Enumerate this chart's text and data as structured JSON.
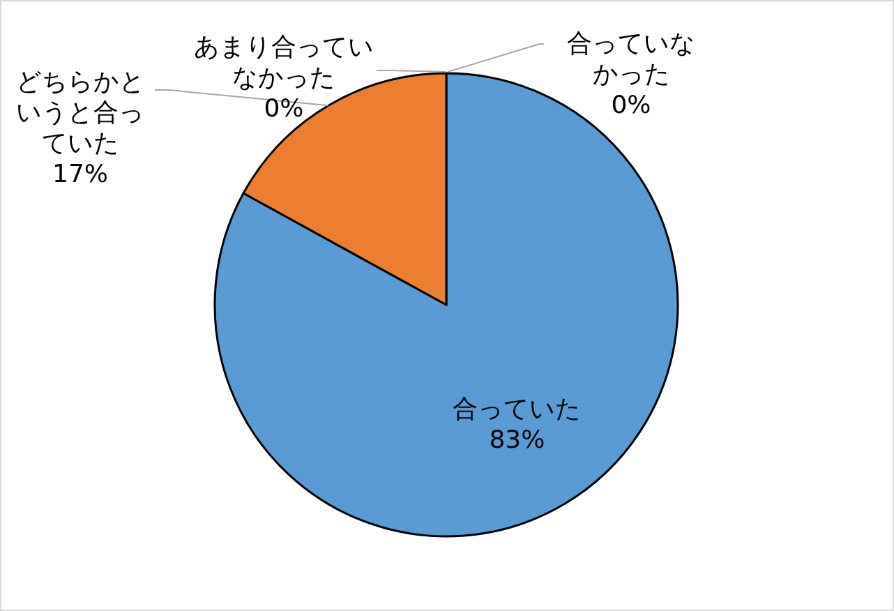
{
  "chart_data": {
    "type": "pie",
    "categories": [
      "合っていた",
      "どちらかというと合っていた",
      "あまり合っていなかった",
      "合っていなかった"
    ],
    "values": [
      83,
      17,
      0,
      0
    ],
    "colors": [
      "#5b9bd5",
      "#ed7d31",
      "#a5a5a5",
      "#ffc000"
    ],
    "value_labels": [
      "83%",
      "17%",
      "0%",
      "0%"
    ]
  }
}
